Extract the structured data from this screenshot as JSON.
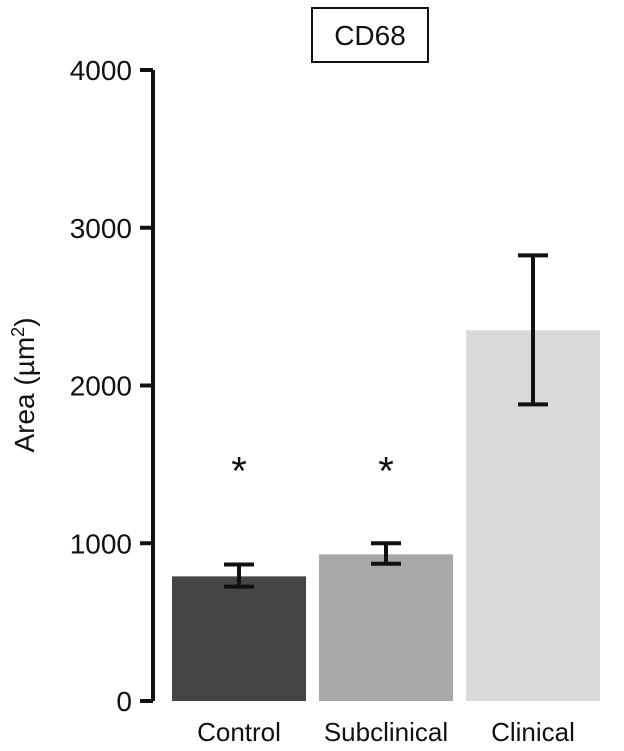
{
  "chart_data": {
    "type": "bar",
    "title": "CD68",
    "ylabel_prefix": "Area (µm",
    "ylabel_sup": "2",
    "ylabel_suffix": ")",
    "xlabel": "",
    "categories": [
      "Control",
      "Subclinical",
      "Clinical"
    ],
    "values": [
      790,
      930,
      2350
    ],
    "error_low": [
      725,
      870,
      1880
    ],
    "error_high": [
      865,
      1000,
      2825
    ],
    "colors": [
      "#454545",
      "#a8a8a8",
      "#d9d9d9"
    ],
    "annotations": [
      "*",
      "*",
      ""
    ],
    "annotation_values": [
      1550,
      1550,
      null
    ],
    "ylim": [
      0,
      4000
    ],
    "yticks": [
      0,
      1000,
      2000,
      3000,
      4000
    ],
    "grid": false,
    "legend": "none"
  }
}
